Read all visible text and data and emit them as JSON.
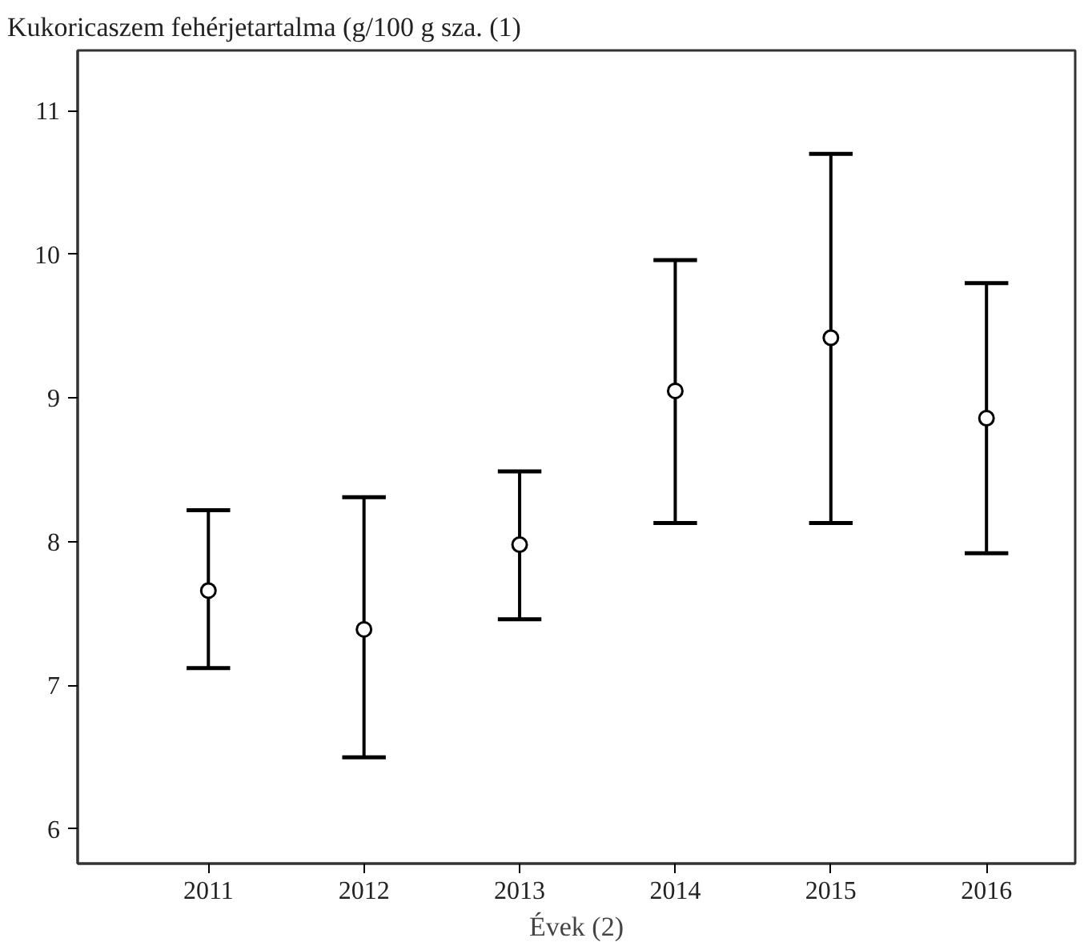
{
  "chart_data": {
    "type": "scatter",
    "ylabel": "Kukoricaszem fehérjetartalma (g/100 g sza. (1)",
    "xlabel": "Évek (2)",
    "categories": [
      "2011",
      "2012",
      "2013",
      "2014",
      "2015",
      "2016"
    ],
    "values": [
      7.66,
      7.39,
      7.98,
      9.05,
      9.42,
      8.86
    ],
    "errors": [
      [
        7.12,
        8.22
      ],
      [
        6.5,
        8.31
      ],
      [
        7.46,
        8.49
      ],
      [
        8.13,
        9.96
      ],
      [
        8.13,
        10.7
      ],
      [
        7.92,
        9.8
      ]
    ],
    "color": "#000000",
    "marker": "circle",
    "grid": false,
    "ylim": [
      5.76,
      11.42
    ],
    "yticks": [
      6,
      7,
      8,
      9,
      10,
      11
    ]
  }
}
